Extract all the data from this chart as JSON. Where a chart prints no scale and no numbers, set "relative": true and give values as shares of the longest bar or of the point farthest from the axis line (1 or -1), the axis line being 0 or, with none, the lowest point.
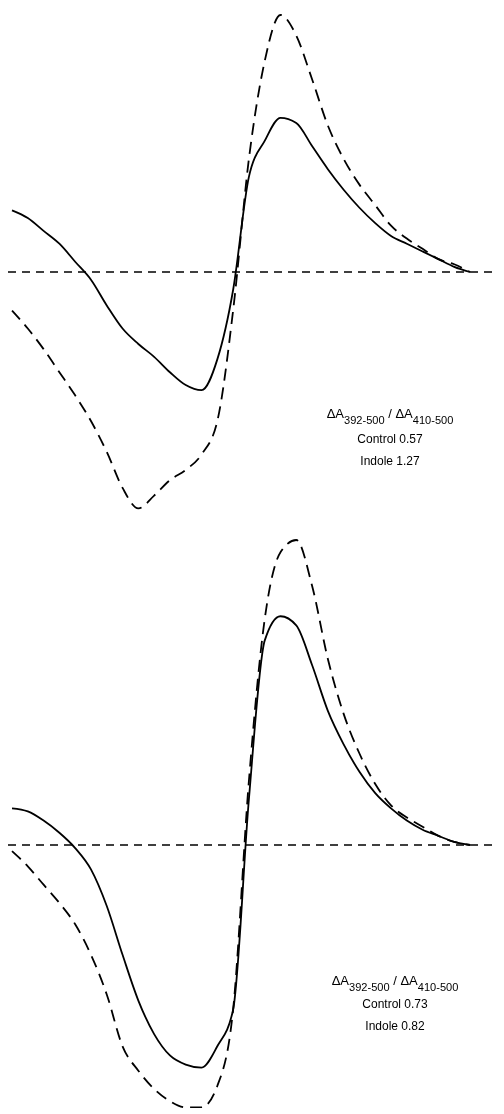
{
  "chart_data": [
    {
      "type": "line",
      "relative": true,
      "categories": [
        null,
        null,
        null,
        null,
        null,
        null,
        null,
        null,
        null,
        null,
        null,
        null,
        null,
        null,
        null,
        null,
        null,
        null,
        null,
        null,
        null,
        null,
        null,
        null,
        null,
        null,
        null,
        null,
        null,
        null
      ],
      "series": [
        {
          "color": "#000000",
          "line_style": "solid",
          "values": [
            0.24,
            0.21,
            0.16,
            0.11,
            0.04,
            -0.03,
            -0.13,
            -0.22,
            -0.28,
            -0.33,
            -0.39,
            -0.44,
            -0.46,
            -0.34,
            -0.07,
            0.37,
            0.51,
            0.6,
            0.58,
            0.49,
            0.4,
            0.32,
            0.25,
            0.19,
            0.14,
            0.11,
            0.08,
            0.05,
            0.02,
            0
          ]
        },
        {
          "color": "#000000",
          "line_style": "dashed",
          "values": [
            -0.15,
            -0.22,
            -0.3,
            -0.39,
            -0.48,
            -0.58,
            -0.7,
            -0.84,
            -0.92,
            -0.87,
            -0.81,
            -0.77,
            -0.71,
            -0.58,
            -0.15,
            0.44,
            0.82,
            1,
            0.92,
            0.75,
            0.57,
            0.44,
            0.34,
            0.26,
            0.18,
            0.13,
            0.09,
            0.05,
            0.03,
            0
          ]
        }
      ],
      "ref_lines": [
        {
          "axis": "y",
          "value": 0,
          "line_style": "dashed",
          "color": "#000000"
        }
      ],
      "annotations": [
        "ΔA$_{392-500}$ / ΔA$_{410-500}$",
        "Control 0.57",
        "Indole 1.27"
      ]
    },
    {
      "type": "line",
      "relative": true,
      "categories": [
        null,
        null,
        null,
        null,
        null,
        null,
        null,
        null,
        null,
        null,
        null,
        null,
        null,
        null,
        null,
        null,
        null,
        null,
        null,
        null,
        null,
        null,
        null,
        null,
        null,
        null,
        null,
        null,
        null,
        null
      ],
      "series": [
        {
          "color": "#000000",
          "line_style": "solid",
          "values": [
            0.12,
            0.11,
            0.08,
            0.04,
            -0.01,
            -0.08,
            -0.2,
            -0.36,
            -0.51,
            -0.62,
            -0.69,
            -0.72,
            -0.73,
            -0.66,
            -0.54,
            0.15,
            0.67,
            0.75,
            0.72,
            0.59,
            0.44,
            0.33,
            0.24,
            0.17,
            0.12,
            0.08,
            0.05,
            0.03,
            0.01,
            0
          ]
        },
        {
          "color": "#000000",
          "line_style": "dashed",
          "values": [
            -0.02,
            -0.07,
            -0.13,
            -0.19,
            -0.26,
            -0.36,
            -0.49,
            -0.66,
            -0.74,
            -0.8,
            -0.84,
            -0.86,
            -0.86,
            -0.79,
            -0.54,
            0.21,
            0.74,
            0.96,
            1,
            0.85,
            0.61,
            0.43,
            0.3,
            0.2,
            0.13,
            0.09,
            0.06,
            0.03,
            0.01,
            0
          ]
        }
      ],
      "ref_lines": [
        {
          "axis": "y",
          "value": 0,
          "line_style": "dashed",
          "color": "#000000"
        }
      ],
      "annotations": [
        "ΔA$_{392-500}$ / ΔA$_{410-500}$",
        "Control 0.73",
        "Indole 0.82"
      ]
    }
  ]
}
